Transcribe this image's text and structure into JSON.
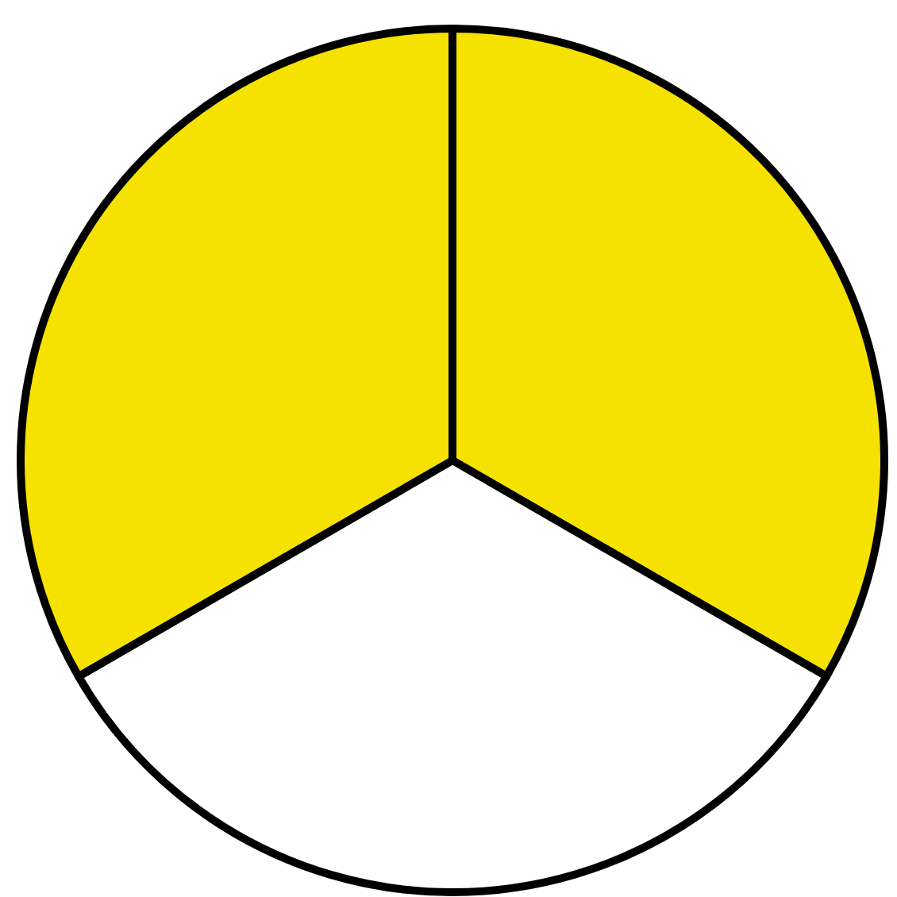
{
  "chart_data": {
    "type": "pie",
    "categories": [
      null,
      null,
      null
    ],
    "values": [
      33.33,
      33.33,
      33.34
    ],
    "colors": [
      "#f5e200",
      "#ffffff",
      "#f5e200"
    ]
  }
}
